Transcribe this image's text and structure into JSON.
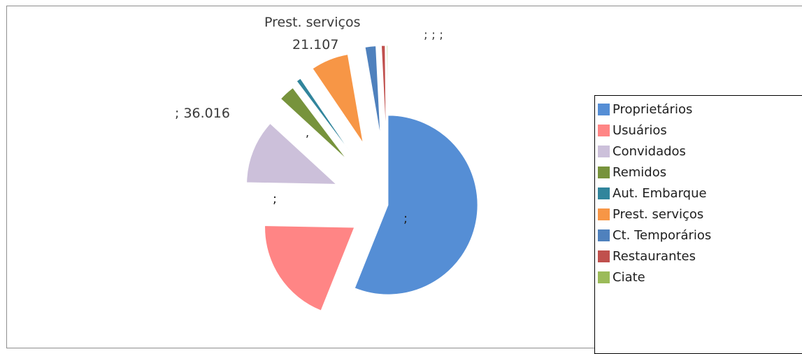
{
  "chart_data": {
    "type": "pie",
    "legend_position": "right",
    "slices": [
      {
        "name": "Proprietários",
        "value": 175000,
        "color": "#558ed5",
        "label": ";"
      },
      {
        "name": "Usuários",
        "value": 60000,
        "color": "#ff8585",
        "label": ";"
      },
      {
        "name": "Convidados",
        "value": 36016,
        "color": "#ccc0da",
        "label": "; 36.016"
      },
      {
        "name": "Remidos",
        "value": 9000,
        "color": "#77933c",
        "label": ";"
      },
      {
        "name": "Aut. Embarque",
        "value": 2500,
        "color": "#31859c",
        "label": ";"
      },
      {
        "name": "Prest. serviços",
        "value": 21107,
        "color": "#f79646",
        "label": "Prest. serviços 21.107"
      },
      {
        "name": "Ct. Temporários",
        "value": 6000,
        "color": "#4f81bd",
        "label": ";"
      },
      {
        "name": "Restaurantes",
        "value": 2000,
        "color": "#c0504d",
        "label": ";"
      },
      {
        "name": "Ciate",
        "value": 500,
        "color": "#9bbb59",
        "label": ";"
      }
    ],
    "floating_labels": {
      "convidados": "; 36.016",
      "prest_name": "Prest. serviços",
      "prest_value": "21.107",
      "top_right": "; ; ;",
      "proprietarios": ";",
      "usuarios": ";",
      "small": ","
    }
  }
}
